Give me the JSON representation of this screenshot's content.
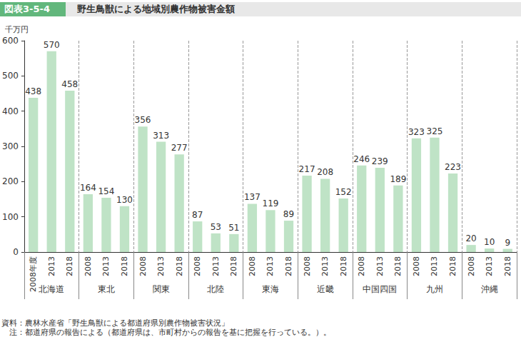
{
  "chart_data": {
    "type": "bar",
    "figure_number": "図表3-5-4",
    "title": "野生鳥獣による地域別農作物被害金額",
    "ylabel": "千万円",
    "source": "資料：農林水産省「野生鳥獣による都道府県別農作物被害状況」",
    "note": "　注：都道府県の報告による（都道府県は、市町村からの報告を基に把握を行っている。）。",
    "categories": [
      "2008年度",
      "2013",
      "2018",
      "2008",
      "2013",
      "2018",
      "2008",
      "2013",
      "2018",
      "2008",
      "2013",
      "2018",
      "2008",
      "2013",
      "2018",
      "2008",
      "2013",
      "2018",
      "2008",
      "2013",
      "2018",
      "2008",
      "2013",
      "2018",
      "2008",
      "2013",
      "2018"
    ],
    "groups": [
      "北海道",
      "東北",
      "関東",
      "北陸",
      "東海",
      "近畿",
      "中国四国",
      "九州",
      "沖縄"
    ],
    "values": [
      438,
      570,
      458,
      164,
      154,
      130,
      356,
      313,
      277,
      87,
      53,
      51,
      137,
      119,
      89,
      217,
      208,
      152,
      246,
      239,
      189,
      323,
      325,
      223,
      20,
      10,
      9
    ],
    "color": "#bfe3c6",
    "ylim": [
      0,
      600
    ],
    "yticks": [
      0,
      100,
      200,
      300,
      400,
      500,
      600
    ],
    "grid": false,
    "data_labels": true
  }
}
